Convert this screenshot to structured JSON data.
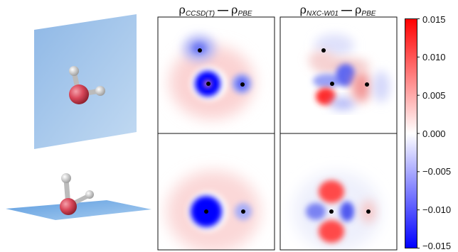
{
  "columns": [
    {
      "rho": "ρ",
      "sub_a": "CCSD(T)",
      "sep": "—",
      "rho_b": "ρ",
      "sub_b": "PBE"
    },
    {
      "rho": "ρ",
      "sub_a": "NXC-W01",
      "sep": "—",
      "rho_b": "ρ",
      "sub_b": "PBE"
    }
  ],
  "colorbar": {
    "ticks": [
      "0.015",
      "0.010",
      "0.005",
      "0.000",
      "−0.005",
      "−0.010",
      "−0.015"
    ],
    "values": [
      0.015,
      0.01,
      0.005,
      0.0,
      -0.005,
      -0.01,
      -0.015
    ],
    "colormap": [
      "#0000ff",
      "#ffffff",
      "#ff0000"
    ]
  },
  "colors": {
    "plane": "#9fc4ea",
    "oxygen": "#d9485a",
    "hydrogen": "#e8e8e8",
    "atom_marker": "#000000"
  }
}
